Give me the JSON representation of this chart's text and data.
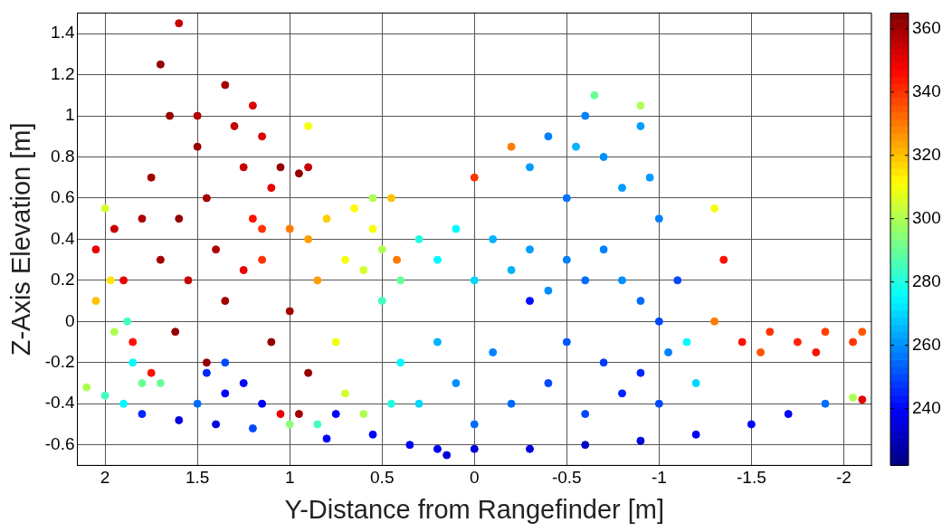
{
  "chart_data": {
    "type": "scatter",
    "xlabel": "Y-Distance from Rangefinder [m]",
    "ylabel": "Z-Axis Elevation [m]",
    "xlim": [
      2.15,
      -2.15
    ],
    "xticks": [
      2,
      1.5,
      1,
      0.5,
      0,
      -0.5,
      -1,
      -1.5,
      -2
    ],
    "ylim": [
      -0.7,
      1.5
    ],
    "yticks": [
      -0.6,
      -0.4,
      -0.2,
      0,
      0.2,
      0.4,
      0.6,
      0.8,
      1,
      1.2,
      1.4
    ],
    "clim": [
      222,
      365
    ],
    "cticks": [
      240,
      260,
      280,
      300,
      320,
      340,
      360
    ],
    "grid": true,
    "legend": false,
    "marker": "circle",
    "x": [
      1.95,
      1.9,
      1.85,
      1.75,
      1.7,
      1.65,
      1.6,
      1.55,
      1.5,
      1.45,
      1.4,
      1.35,
      1.3,
      1.25,
      1.2,
      1.15,
      1.1,
      1.05,
      0.95,
      0.9,
      1.5,
      1.62,
      1.45,
      1.1,
      1.0,
      0.9,
      0.95,
      1.05,
      1.7,
      1.8,
      2.05,
      1.35,
      1.25,
      1.15,
      1.2,
      1.75,
      1.6,
      1.97,
      1.95,
      2.0,
      2.05,
      1.88,
      1.85,
      1.8,
      1.7,
      2.1,
      2.0,
      1.9,
      1.8,
      1.6,
      1.4,
      1.2,
      1.0,
      0.85,
      0.75,
      1.45,
      1.35,
      1.25,
      1.15,
      1.35,
      1.5,
      1.0,
      0.9,
      0.8,
      0.7,
      0.65,
      0.6,
      0.55,
      0.5,
      0.85,
      0.75,
      0.7,
      0.6,
      1.15,
      0.45,
      0.42,
      0.55,
      0.4,
      0.3,
      0.2,
      0.1,
      0.0,
      -0.1,
      -0.2,
      -0.3,
      -0.4,
      -0.5,
      -0.6,
      -0.7,
      -0.8,
      -0.9,
      -1.0,
      0.4,
      0.3,
      0.2,
      0.1,
      0.0,
      -0.1,
      -0.2,
      -0.3,
      -0.4,
      -0.5,
      -0.6,
      -0.7,
      -0.8,
      -0.9,
      -1.0,
      -1.05,
      -1.15,
      -1.2,
      -1.1,
      0.5,
      0.45,
      -0.3,
      -0.4,
      -0.5,
      -0.6,
      -0.7,
      -0.8,
      -0.9,
      -0.95,
      -1.0,
      -0.55,
      -0.65,
      -0.9,
      -1.3,
      -1.35,
      -1.3,
      0.0,
      -0.2,
      0.9,
      0.55,
      0.35,
      0.2,
      0.0,
      -0.3,
      -0.6,
      -0.9,
      -1.2,
      -1.5,
      -1.7,
      -1.9,
      -2.05,
      -2.1,
      0.15,
      0.8,
      -1.45,
      -1.6,
      -1.75,
      -1.9,
      -2.05,
      -1.55,
      -1.85,
      -2.1
    ],
    "values": [
      0.45,
      0.2,
      -0.1,
      0.7,
      1.25,
      1.0,
      0.5,
      0.2,
      0.85,
      0.6,
      0.35,
      1.15,
      0.95,
      0.75,
      0.5,
      0.9,
      0.65,
      0.75,
      0.72,
      0.75,
      1.0,
      -0.05,
      -0.2,
      -0.1,
      0.05,
      -0.25,
      -0.45,
      -0.45,
      0.3,
      0.5,
      0.35,
      0.1,
      0.25,
      0.3,
      1.05,
      -0.25,
      1.45,
      0.2,
      -0.05,
      0.55,
      0.1,
      0.0,
      -0.2,
      -0.3,
      -0.3,
      -0.32,
      -0.36,
      -0.4,
      -0.45,
      -0.48,
      -0.5,
      -0.52,
      -0.5,
      -0.5,
      -0.45,
      -0.25,
      -0.35,
      -0.3,
      -0.4,
      -0.2,
      -0.4,
      0.45,
      0.4,
      0.5,
      0.3,
      0.55,
      0.25,
      0.45,
      0.35,
      0.2,
      -0.1,
      -0.35,
      -0.45,
      0.45,
      0.6,
      0.3,
      0.6,
      0.2,
      0.4,
      0.3,
      0.45,
      0.2,
      0.4,
      0.25,
      0.35,
      0.15,
      0.3,
      0.2,
      0.35,
      0.2,
      0.1,
      0.0,
      -0.2,
      -0.4,
      -0.1,
      -0.3,
      -0.5,
      -0.15,
      -0.4,
      0.1,
      -0.3,
      -0.1,
      -0.45,
      -0.2,
      -0.35,
      -0.25,
      -0.4,
      -0.15,
      -0.1,
      -0.3,
      0.2,
      0.1,
      -0.4,
      0.75,
      0.9,
      0.6,
      1.0,
      0.8,
      0.65,
      0.95,
      0.7,
      0.5,
      0.85,
      1.1,
      1.05,
      0.55,
      0.3,
      0.0,
      0.7,
      0.85,
      0.95,
      -0.55,
      -0.6,
      -0.62,
      -0.62,
      -0.62,
      -0.6,
      -0.58,
      -0.55,
      -0.5,
      -0.45,
      -0.4,
      -0.37,
      -0.38,
      -0.65,
      -0.57,
      -0.1,
      -0.05,
      -0.1,
      -0.05,
      -0.1,
      -0.15,
      -0.15,
      -0.05
    ],
    "cvalues": [
      355,
      350,
      345,
      360,
      362,
      362,
      362,
      355,
      362,
      360,
      358,
      360,
      355,
      355,
      345,
      352,
      350,
      362,
      362,
      355,
      358,
      362,
      362,
      362,
      360,
      362,
      360,
      350,
      360,
      358,
      350,
      360,
      350,
      340,
      352,
      345,
      355,
      315,
      300,
      305,
      320,
      285,
      275,
      290,
      290,
      300,
      285,
      275,
      245,
      235,
      235,
      250,
      295,
      285,
      240,
      245,
      240,
      240,
      238,
      250,
      255,
      330,
      325,
      318,
      310,
      312,
      305,
      310,
      300,
      325,
      310,
      305,
      300,
      340,
      320,
      330,
      300,
      290,
      280,
      275,
      275,
      270,
      265,
      265,
      262,
      260,
      258,
      255,
      258,
      260,
      255,
      250,
      275,
      270,
      265,
      260,
      255,
      258,
      255,
      242,
      250,
      252,
      250,
      248,
      245,
      245,
      250,
      258,
      275,
      270,
      250,
      285,
      280,
      262,
      258,
      256,
      258,
      260,
      262,
      262,
      262,
      258,
      265,
      290,
      300,
      310,
      345,
      330,
      340,
      330,
      310,
      240,
      240,
      238,
      235,
      235,
      232,
      235,
      238,
      240,
      240,
      255,
      300,
      350,
      235,
      240,
      345,
      340,
      342,
      338,
      340,
      335,
      345,
      335
    ]
  }
}
